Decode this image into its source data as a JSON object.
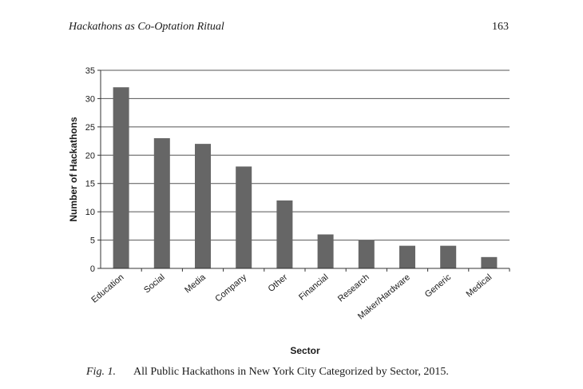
{
  "page": {
    "running_head": "Hackathons as Co-Optation Ritual",
    "page_number": "163"
  },
  "caption": {
    "figure_number": "Fig. 1.",
    "text": "All Public Hackathons in New York City Categorized by Sector, 2015."
  },
  "chart_data": {
    "type": "bar",
    "categories": [
      "Education",
      "Social",
      "Media",
      "Company",
      "Other",
      "Financial",
      "Research",
      "Maker/Hardware",
      "Generic",
      "Medical"
    ],
    "values": [
      32,
      23,
      22,
      18,
      12,
      6,
      5,
      4,
      4,
      2
    ],
    "xlabel": "Sector",
    "ylabel": "Number of Hackathons",
    "ylim": [
      0,
      35
    ],
    "yticks": [
      0,
      5,
      10,
      15,
      20,
      25,
      30,
      35
    ],
    "grid": true,
    "bar_color": "#666666"
  }
}
